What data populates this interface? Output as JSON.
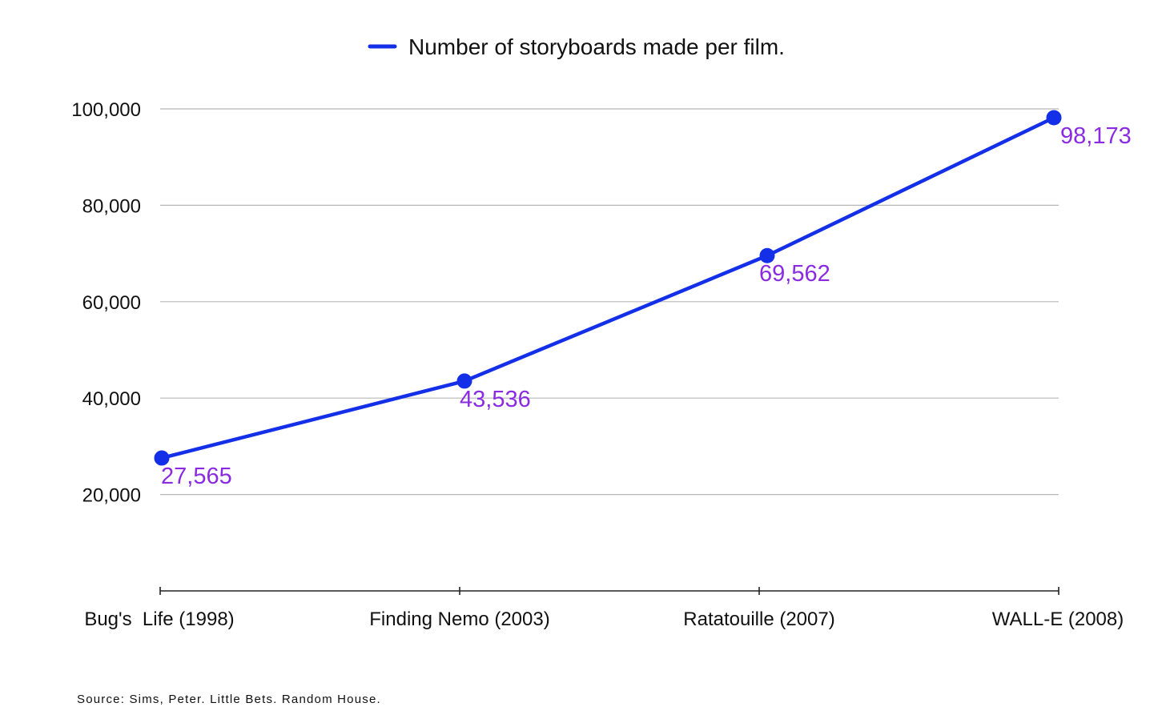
{
  "chart_data": {
    "type": "line",
    "categories": [
      "Bug's  Life (1998)",
      "Finding Nemo (2003)",
      "Ratatouille (2007)",
      "WALL-E (2008)"
    ],
    "series": [
      {
        "name": "Number of storyboards made per film.",
        "values": [
          27565,
          43536,
          69562,
          98173
        ],
        "data_labels": [
          "27,565",
          "43,536",
          "69,562",
          "98,173"
        ]
      }
    ],
    "yticks": [
      "20,000",
      "40,000",
      "60,000",
      "80,000",
      "100,000"
    ],
    "ytick_values": [
      20000,
      40000,
      60000,
      80000,
      100000
    ],
    "ylim": [
      0,
      100000
    ],
    "grid": true,
    "legend_position": "top-center"
  },
  "colors": {
    "series_line": "#1330e8",
    "data_label": "#8a2be2",
    "grid": "#b7b7b7",
    "axis": "#222222"
  },
  "source": "Source: Sims, Peter. Little Bets. Random House."
}
